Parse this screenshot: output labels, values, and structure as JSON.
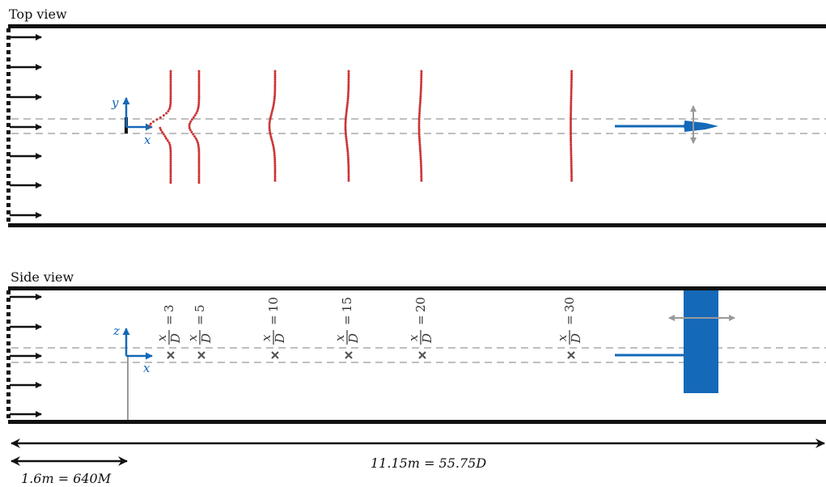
{
  "top_view": {
    "title": "Top view",
    "axis_x": "x",
    "axis_y": "y"
  },
  "side_view": {
    "title": "Side view",
    "axis_x": "x",
    "axis_z": "z",
    "stations": [
      {
        "value": "3"
      },
      {
        "value": "5"
      },
      {
        "value": "10"
      },
      {
        "value": "15"
      },
      {
        "value": "20"
      },
      {
        "value": "30"
      }
    ],
    "station_numerator": "x",
    "station_denominator": "D",
    "station_equals": "="
  },
  "dimensions": {
    "total_length": "11.15m = 55.75D",
    "inlet_distance": "1.6m = 640M"
  },
  "colors": {
    "wall": "#111111",
    "flow_arrow": "#111111",
    "wake_profile": "#cc3333",
    "turbine": "#1469b8",
    "axes": "#1469b8",
    "motion_arrow": "#999999",
    "centerline": "#999999"
  }
}
